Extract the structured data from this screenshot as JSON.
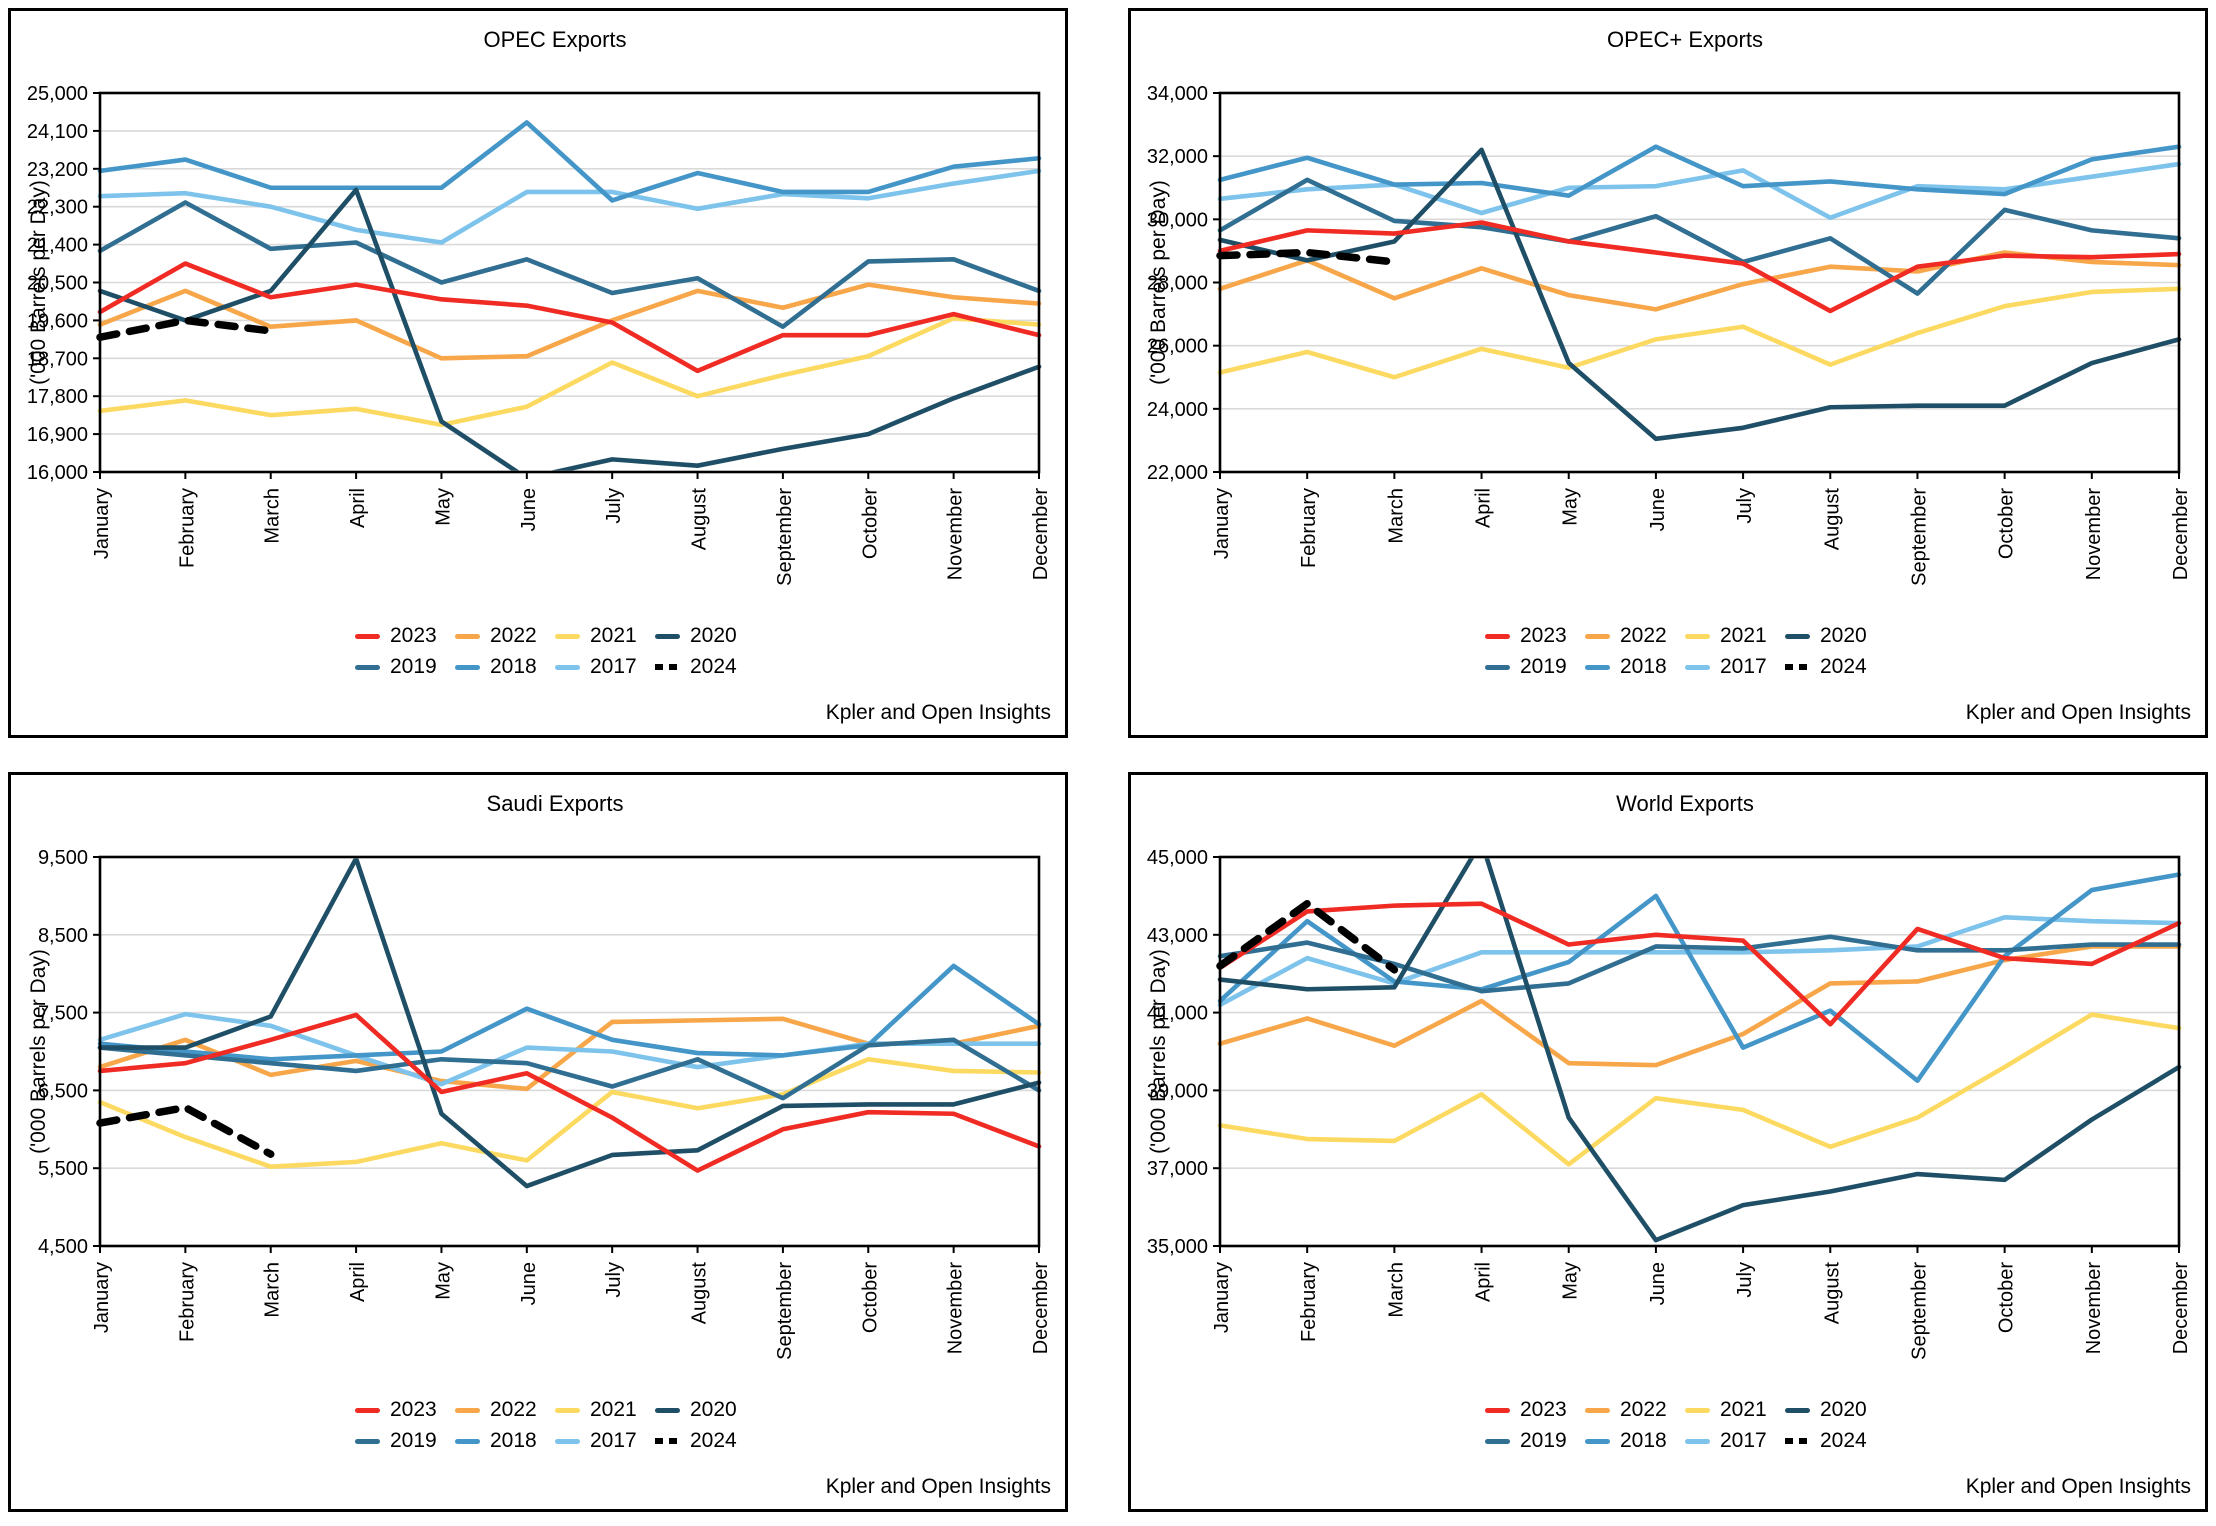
{
  "chart_data": [
    {
      "type": "line",
      "title": "OPEC Exports",
      "ylabel": "('000 Barrels per Day)",
      "source": "Kpler and Open Insights",
      "ylim": [
        16000,
        25000
      ],
      "ytick_step": 900,
      "grid": true,
      "legend_position": "bottom",
      "categories": [
        "January",
        "February",
        "March",
        "April",
        "May",
        "June",
        "July",
        "August",
        "September",
        "October",
        "November",
        "December"
      ],
      "legend_rows": [
        [
          "2023",
          "2022",
          "2021",
          "2020"
        ],
        [
          "2019",
          "2018",
          "2017",
          "2024"
        ]
      ],
      "series": [
        {
          "name": "2023",
          "color": "#ef2b24",
          "dashed": false,
          "values": [
            19800,
            20950,
            20150,
            20450,
            20100,
            19950,
            19550,
            18400,
            19250,
            19250,
            19750,
            19250
          ]
        },
        {
          "name": "2022",
          "color": "#f7a64a",
          "dashed": false,
          "values": [
            19500,
            20300,
            19450,
            19600,
            18700,
            18750,
            19600,
            20300,
            19900,
            20450,
            20150,
            20000
          ]
        },
        {
          "name": "2021",
          "color": "#fcda62",
          "dashed": false,
          "values": [
            17450,
            17700,
            17350,
            17500,
            17120,
            17550,
            18600,
            17800,
            18300,
            18750,
            19650,
            19500
          ]
        },
        {
          "name": "2020",
          "color": "#1f4f66",
          "dashed": false,
          "values": [
            20300,
            19600,
            20300,
            22700,
            17200,
            15850,
            16300,
            16150,
            16550,
            16900,
            17750,
            18500
          ]
        },
        {
          "name": "2019",
          "color": "#306e92",
          "dashed": false,
          "values": [
            21250,
            22400,
            21300,
            21450,
            20500,
            21050,
            20250,
            20600,
            19450,
            21000,
            21050,
            20300
          ]
        },
        {
          "name": "2018",
          "color": "#4496c8",
          "dashed": false,
          "values": [
            23150,
            23420,
            22750,
            22750,
            22750,
            24300,
            22450,
            23100,
            22650,
            22650,
            23250,
            23450
          ]
        },
        {
          "name": "2017",
          "color": "#7dc3eb",
          "dashed": false,
          "values": [
            22550,
            22620,
            22300,
            21750,
            21450,
            22650,
            22650,
            22250,
            22600,
            22500,
            22850,
            23150
          ]
        },
        {
          "name": "2024",
          "color": "#000000",
          "dashed": true,
          "values": [
            19200,
            19600,
            19350,
            null,
            null,
            null,
            null,
            null,
            null,
            null,
            null,
            null
          ]
        }
      ]
    },
    {
      "type": "line",
      "title": "OPEC+ Exports",
      "ylabel": "('000 Barrels per Day)",
      "source": "Kpler and Open Insights",
      "ylim": [
        22000,
        34000
      ],
      "ytick_step": 2000,
      "grid": true,
      "legend_position": "bottom",
      "categories": [
        "January",
        "February",
        "March",
        "April",
        "May",
        "June",
        "July",
        "August",
        "September",
        "October",
        "November",
        "December"
      ],
      "legend_rows": [
        [
          "2023",
          "2022",
          "2021",
          "2020"
        ],
        [
          "2019",
          "2018",
          "2017",
          "2024"
        ]
      ],
      "series": [
        {
          "name": "2023",
          "color": "#ef2b24",
          "dashed": false,
          "values": [
            29000,
            29650,
            29550,
            29900,
            29300,
            28950,
            28600,
            27100,
            28500,
            28850,
            28800,
            28900
          ]
        },
        {
          "name": "2022",
          "color": "#f7a64a",
          "dashed": false,
          "values": [
            27800,
            28700,
            27500,
            28450,
            27600,
            27150,
            27950,
            28500,
            28350,
            28950,
            28650,
            28550
          ]
        },
        {
          "name": "2021",
          "color": "#fcda62",
          "dashed": false,
          "values": [
            25150,
            25800,
            25000,
            25900,
            25300,
            26200,
            26600,
            25400,
            26400,
            27250,
            27700,
            27800
          ]
        },
        {
          "name": "2020",
          "color": "#1f4f66",
          "dashed": false,
          "values": [
            29350,
            28700,
            29300,
            32200,
            25450,
            23050,
            23400,
            24050,
            24100,
            24100,
            25450,
            26200
          ]
        },
        {
          "name": "2019",
          "color": "#306e92",
          "dashed": false,
          "values": [
            29650,
            31250,
            29950,
            29750,
            29300,
            30100,
            28650,
            29400,
            27650,
            30300,
            29650,
            29400
          ]
        },
        {
          "name": "2018",
          "color": "#4496c8",
          "dashed": false,
          "values": [
            31250,
            31950,
            31100,
            31150,
            30750,
            32300,
            31050,
            31200,
            30950,
            30800,
            31900,
            32300
          ]
        },
        {
          "name": "2017",
          "color": "#7dc3eb",
          "dashed": false,
          "values": [
            30650,
            30950,
            31100,
            30200,
            31000,
            31050,
            31550,
            30050,
            31050,
            30950,
            31350,
            31750
          ]
        },
        {
          "name": "2024",
          "color": "#000000",
          "dashed": true,
          "values": [
            28850,
            28950,
            28650,
            null,
            null,
            null,
            null,
            null,
            null,
            null,
            null,
            null
          ]
        }
      ]
    },
    {
      "type": "line",
      "title": "Saudi Exports",
      "ylabel": "('000 Barrels per Day)",
      "source": "Kpler and Open Insights",
      "ylim": [
        4500,
        9500
      ],
      "ytick_step": 1000,
      "grid": true,
      "legend_position": "bottom",
      "categories": [
        "January",
        "February",
        "March",
        "April",
        "May",
        "June",
        "July",
        "August",
        "September",
        "October",
        "November",
        "December"
      ],
      "legend_rows": [
        [
          "2023",
          "2022",
          "2021",
          "2020"
        ],
        [
          "2019",
          "2018",
          "2017",
          "2024"
        ]
      ],
      "series": [
        {
          "name": "2023",
          "color": "#ef2b24",
          "dashed": false,
          "values": [
            6750,
            6850,
            7150,
            7470,
            6480,
            6720,
            6150,
            5470,
            6000,
            6220,
            6200,
            5780
          ]
        },
        {
          "name": "2022",
          "color": "#f7a64a",
          "dashed": false,
          "values": [
            6800,
            7150,
            6700,
            6880,
            6620,
            6520,
            7380,
            7400,
            7420,
            7100,
            7100,
            7330
          ]
        },
        {
          "name": "2021",
          "color": "#fcda62",
          "dashed": false,
          "values": [
            6350,
            5900,
            5520,
            5580,
            5820,
            5600,
            6480,
            6270,
            6450,
            6900,
            6750,
            6730
          ]
        },
        {
          "name": "2020",
          "color": "#1f4f66",
          "dashed": false,
          "values": [
            7050,
            7050,
            7450,
            9480,
            6200,
            5270,
            5670,
            5730,
            6300,
            6320,
            6320,
            6600
          ]
        },
        {
          "name": "2019",
          "color": "#306e92",
          "dashed": false,
          "values": [
            7050,
            6950,
            6850,
            6750,
            6900,
            6850,
            6550,
            6900,
            6400,
            7080,
            7150,
            6500
          ]
        },
        {
          "name": "2018",
          "color": "#4496c8",
          "dashed": false,
          "values": [
            7100,
            7000,
            6900,
            6950,
            7000,
            7550,
            7150,
            6980,
            6950,
            7080,
            8100,
            7350
          ]
        },
        {
          "name": "2017",
          "color": "#7dc3eb",
          "dashed": false,
          "values": [
            7150,
            7480,
            7330,
            6950,
            6580,
            7050,
            7000,
            6800,
            6950,
            7100,
            7100,
            7100
          ]
        },
        {
          "name": "2024",
          "color": "#000000",
          "dashed": true,
          "values": [
            6080,
            6280,
            5680,
            null,
            null,
            null,
            null,
            null,
            null,
            null,
            null,
            null
          ]
        }
      ]
    },
    {
      "type": "line",
      "title": "World Exports",
      "ylabel": "('000 Barrels per Day)",
      "source": "Kpler and Open Insights",
      "ylim": [
        35000,
        45000
      ],
      "ytick_step": 2000,
      "grid": true,
      "legend_position": "bottom",
      "categories": [
        "January",
        "February",
        "March",
        "April",
        "May",
        "June",
        "July",
        "August",
        "September",
        "October",
        "November",
        "December"
      ],
      "legend_rows": [
        [
          "2023",
          "2022",
          "2021",
          "2020"
        ],
        [
          "2019",
          "2018",
          "2017",
          "2024"
        ]
      ],
      "series": [
        {
          "name": "2023",
          "color": "#ef2b24",
          "dashed": false,
          "values": [
            42150,
            43600,
            43750,
            43800,
            42750,
            43000,
            42850,
            40700,
            43150,
            42400,
            42250,
            43300
          ]
        },
        {
          "name": "2022",
          "color": "#f7a64a",
          "dashed": false,
          "values": [
            40200,
            40850,
            40150,
            41300,
            39700,
            39650,
            40450,
            41750,
            41800,
            42350,
            42700,
            42700
          ]
        },
        {
          "name": "2021",
          "color": "#fcda62",
          "dashed": false,
          "values": [
            38100,
            37750,
            37700,
            38900,
            37100,
            38800,
            38500,
            37550,
            38300,
            39600,
            40950,
            40600
          ]
        },
        {
          "name": "2020",
          "color": "#1f4f66",
          "dashed": false,
          "values": [
            41850,
            41600,
            41650,
            45400,
            38300,
            35150,
            36050,
            36400,
            36850,
            36700,
            38250,
            39600
          ]
        },
        {
          "name": "2019",
          "color": "#306e92",
          "dashed": false,
          "values": [
            42450,
            42800,
            42250,
            41550,
            41750,
            42700,
            42650,
            42950,
            42600,
            42600,
            42750,
            42750
          ]
        },
        {
          "name": "2018",
          "color": "#4496c8",
          "dashed": false,
          "values": [
            41300,
            43350,
            41800,
            41600,
            42300,
            44000,
            40100,
            41050,
            39250,
            42450,
            44150,
            44550
          ]
        },
        {
          "name": "2017",
          "color": "#7dc3eb",
          "dashed": false,
          "values": [
            41200,
            42400,
            41750,
            42550,
            42550,
            42550,
            42550,
            42600,
            42700,
            43450,
            43350,
            43300
          ]
        },
        {
          "name": "2024",
          "color": "#000000",
          "dashed": true,
          "values": [
            42200,
            43800,
            42100,
            null,
            null,
            null,
            null,
            null,
            null,
            null,
            null,
            null
          ]
        }
      ]
    }
  ]
}
